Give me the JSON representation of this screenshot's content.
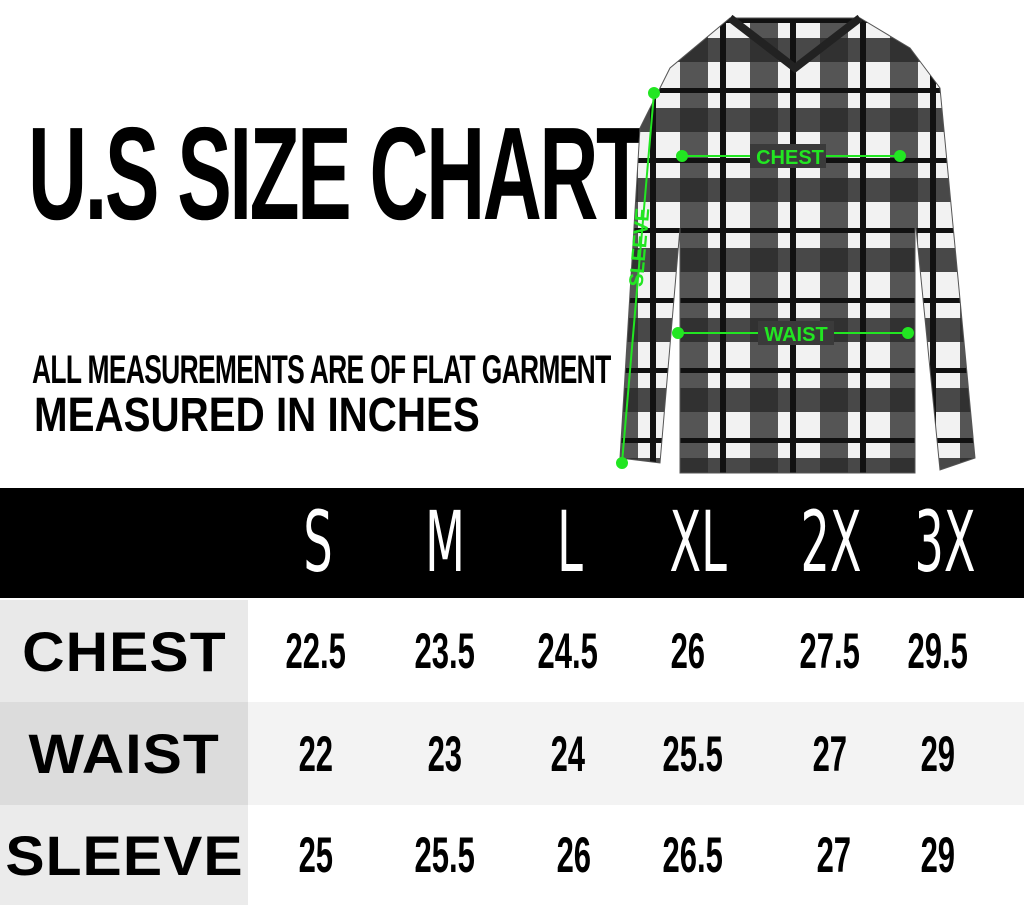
{
  "title": "U.S SIZE CHART",
  "subtitle_line1": "ALL MEASUREMENTS ARE OF FLAT GARMENT",
  "subtitle_line2": "MEASURED IN INCHES",
  "diagram": {
    "chest_label": "CHEST",
    "waist_label": "WAIST",
    "sleeve_label": "SLEEVE",
    "annotation_color": "#22e622"
  },
  "table": {
    "sizes": [
      "S",
      "M",
      "L",
      "XL",
      "2X",
      "3X"
    ],
    "rows": [
      {
        "label": "CHEST",
        "values": [
          "22.5",
          "23.5",
          "24.5",
          "26",
          "27.5",
          "29.5"
        ]
      },
      {
        "label": "WAIST",
        "values": [
          "22",
          "23",
          "24",
          "25.5",
          "27",
          "29"
        ]
      },
      {
        "label": "SLEEVE",
        "values": [
          "25",
          "25.5",
          "26",
          "26.5",
          "27",
          "29"
        ]
      }
    ]
  }
}
